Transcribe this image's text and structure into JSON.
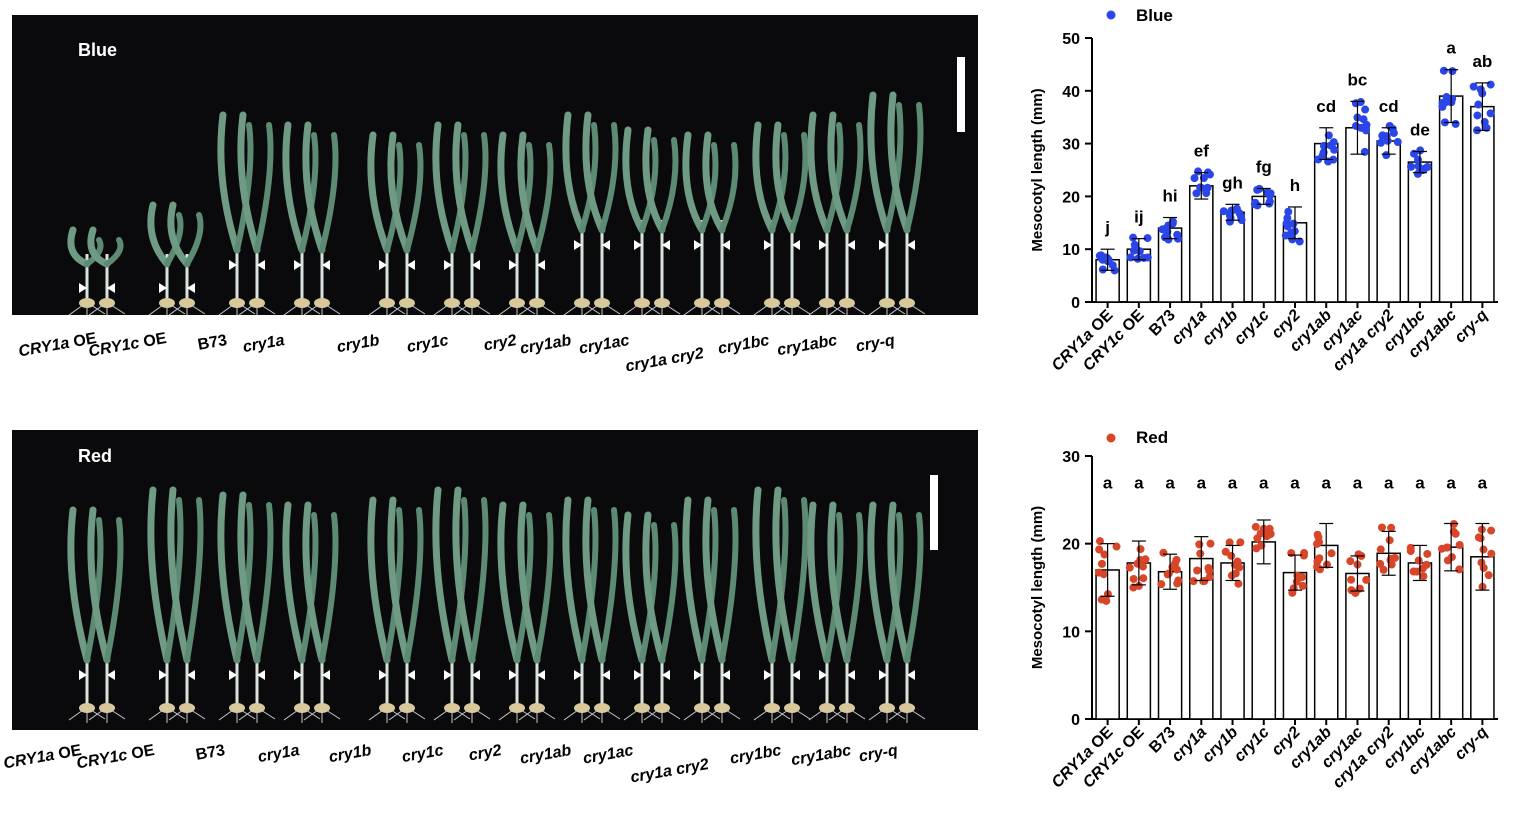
{
  "panels": [
    {
      "photo_label": "Blue",
      "photo_labels": [
        {
          "it": "CRY1a",
          "rest": " OE"
        },
        {
          "it": "CRY1c",
          "rest": " OE"
        },
        {
          "it": "",
          "rest": "B73"
        },
        {
          "it": "cry1a",
          "rest": ""
        },
        {
          "it": "cry1b",
          "rest": ""
        },
        {
          "it": "cry1c",
          "rest": ""
        },
        {
          "it": "cry2",
          "rest": ""
        },
        {
          "it": "cry1ab",
          "rest": ""
        },
        {
          "it": "cry1ac",
          "rest": ""
        },
        {
          "it": "cry1a cry2",
          "rest": ""
        },
        {
          "it": "cry1bc",
          "rest": ""
        },
        {
          "it": "cry1abc",
          "rest": ""
        },
        {
          "it": "cry-q",
          "rest": ""
        }
      ]
    },
    {
      "photo_label": "Red",
      "photo_labels": [
        {
          "it": "CRY1a",
          "rest": " OE"
        },
        {
          "it": "CRY1c",
          "rest": " OE"
        },
        {
          "it": "",
          "rest": "B73"
        },
        {
          "it": "cry1a",
          "rest": ""
        },
        {
          "it": "cry1b",
          "rest": ""
        },
        {
          "it": "cry1c",
          "rest": ""
        },
        {
          "it": "cry2",
          "rest": ""
        },
        {
          "it": "cry1ab",
          "rest": ""
        },
        {
          "it": "cry1ac",
          "rest": ""
        },
        {
          "it": "cry1a cry2",
          "rest": ""
        },
        {
          "it": "cry1bc",
          "rest": ""
        },
        {
          "it": "cry1abc",
          "rest": ""
        },
        {
          "it": "cry-q",
          "rest": ""
        }
      ]
    }
  ],
  "chart_data": [
    {
      "type": "bar",
      "legend": "Blue",
      "color": "#2a45e8",
      "categories": [
        "CRY1a OE",
        "CRY1c OE",
        "B73",
        "cry1a",
        "cry1b",
        "cry1c",
        "cry2",
        "cry1ab",
        "cry1ac",
        "cry1a cry2",
        "cry1bc",
        "cry1abc",
        "cry-q"
      ],
      "values": [
        8,
        10,
        14,
        22,
        17,
        20,
        15,
        30,
        33,
        30.5,
        26.5,
        39,
        37
      ],
      "errors": [
        2,
        2,
        2,
        2.5,
        1.5,
        1.5,
        3,
        3,
        5,
        2.5,
        2,
        5,
        4.5
      ],
      "letters": [
        "j",
        "ij",
        "hi",
        "ef",
        "gh",
        "fg",
        "h",
        "cd",
        "bc",
        "cd",
        "de",
        "a",
        "ab"
      ],
      "ylabel": "Mesocotyl length (mm)",
      "ylim": [
        0,
        50
      ],
      "yticks": [
        0,
        10,
        20,
        30,
        40,
        50
      ],
      "grid": false
    },
    {
      "type": "bar",
      "legend": "Red",
      "color": "#d8462a",
      "categories": [
        "CRY1a OE",
        "CRY1c OE",
        "B73",
        "cry1a",
        "cry1b",
        "cry1c",
        "cry2",
        "cry1ab",
        "cry1ac",
        "cry1a cry2",
        "cry1bc",
        "cry1abc",
        "cry-q"
      ],
      "values": [
        17,
        17.8,
        16.8,
        18.3,
        17.8,
        20.2,
        16.7,
        19.8,
        16.6,
        18.9,
        17.8,
        19.6,
        18.5
      ],
      "errors": [
        3,
        2.5,
        2,
        2.5,
        2,
        2.5,
        2,
        2.5,
        2,
        2.5,
        2,
        2.7,
        3.8
      ],
      "letters": [
        "a",
        "a",
        "a",
        "a",
        "a",
        "a",
        "a",
        "a",
        "a",
        "a",
        "a",
        "a",
        "a"
      ],
      "ylabel": "Mesocotyl length (mm)",
      "ylim": [
        0,
        30
      ],
      "yticks": [
        0,
        10,
        20,
        30
      ],
      "grid": false
    }
  ]
}
